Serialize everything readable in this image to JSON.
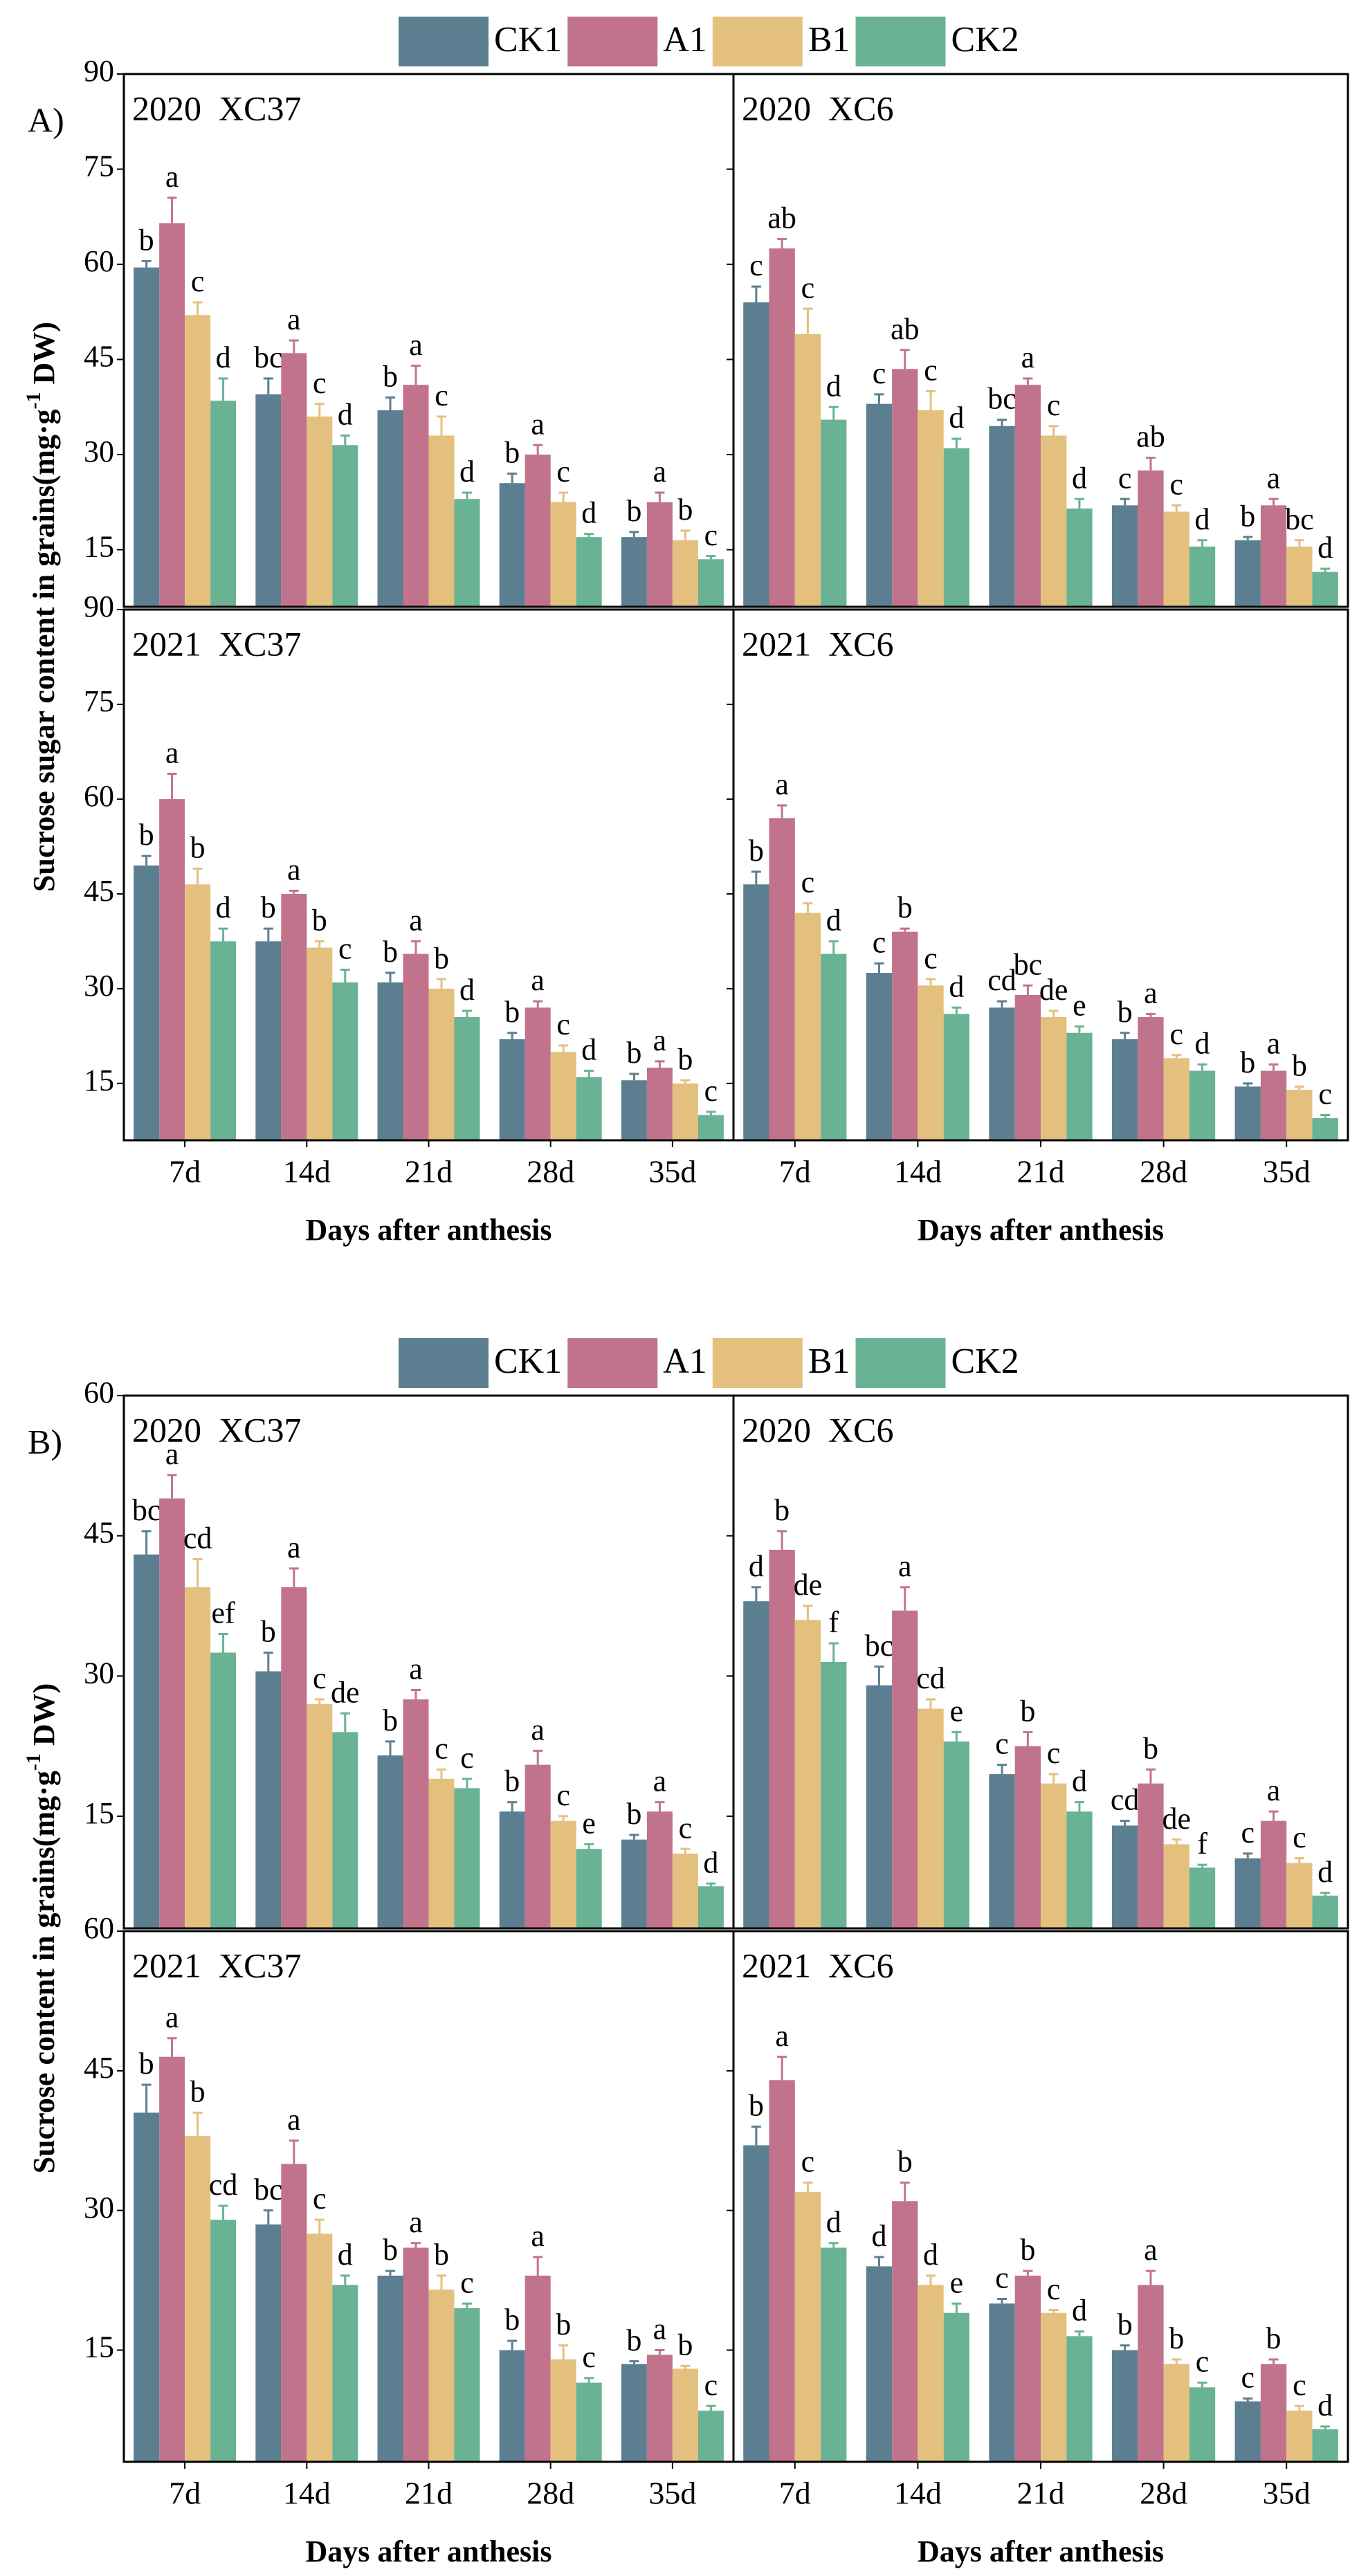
{
  "figures": [
    {
      "label": "A)",
      "ylabel": [
        "Sucrose sugar content in grains(mg·g",
        "-1",
        " DW)"
      ],
      "xlabel": "Days after anthesis"
    },
    {
      "label": "B)",
      "ylabel": [
        "Sucrose content in grains(mg·g",
        "-1",
        " DW)"
      ],
      "xlabel": "Days after anthesis"
    }
  ],
  "chart_data": [
    {
      "type": "bar",
      "title": "2020  XC37",
      "categories": [
        "7d",
        "14d",
        "21d",
        "28d",
        "35d"
      ],
      "ylim": [
        6,
        90
      ],
      "yticks": [
        15,
        30,
        45,
        60,
        75,
        90
      ],
      "series": [
        {
          "name": "CK1",
          "color": "#5b7f91",
          "values": [
            59.5,
            39.5,
            37,
            25.5,
            17
          ],
          "errors": [
            1,
            2.5,
            2,
            1.5,
            0.8
          ],
          "letters": [
            "b",
            "bc",
            "b",
            "b",
            "b"
          ]
        },
        {
          "name": "A1",
          "color": "#c2738c",
          "values": [
            66.5,
            46,
            41,
            30,
            22.5
          ],
          "errors": [
            4,
            2,
            3,
            1.5,
            1.5
          ],
          "letters": [
            "a",
            "a",
            "a",
            "a",
            "a"
          ]
        },
        {
          "name": "B1",
          "color": "#e4c07f",
          "values": [
            52,
            36,
            33,
            22.5,
            16.5
          ],
          "errors": [
            2,
            2,
            3,
            1.5,
            1.5
          ],
          "letters": [
            "c",
            "c",
            "c",
            "c",
            "b"
          ]
        },
        {
          "name": "CK2",
          "color": "#69b394",
          "values": [
            38.5,
            31.5,
            23,
            17,
            13.5
          ],
          "errors": [
            3.5,
            1.5,
            1,
            0.5,
            0.5
          ],
          "letters": [
            "d",
            "d",
            "d",
            "d",
            "c"
          ]
        }
      ]
    },
    {
      "type": "bar",
      "title": "2020  XC6",
      "categories": [
        "7d",
        "14d",
        "21d",
        "28d",
        "35d"
      ],
      "ylim": [
        6,
        90
      ],
      "yticks": [
        15,
        30,
        45,
        60,
        75,
        90
      ],
      "series": [
        {
          "name": "CK1",
          "color": "#5b7f91",
          "values": [
            54,
            38,
            34.5,
            22,
            16.5
          ],
          "errors": [
            2.5,
            1.5,
            1,
            1,
            0.5
          ],
          "letters": [
            "c",
            "c",
            "bc",
            "c",
            "b"
          ]
        },
        {
          "name": "A1",
          "color": "#c2738c",
          "values": [
            62.5,
            43.5,
            41,
            27.5,
            22
          ],
          "errors": [
            1.5,
            3,
            1,
            2,
            1
          ],
          "letters": [
            "ab",
            "ab",
            "a",
            "ab",
            "a"
          ]
        },
        {
          "name": "B1",
          "color": "#e4c07f",
          "values": [
            49,
            37,
            33,
            21,
            15.5
          ],
          "errors": [
            4,
            3,
            1.5,
            1,
            1
          ],
          "letters": [
            "c",
            "c",
            "c",
            "c",
            "bc"
          ]
        },
        {
          "name": "CK2",
          "color": "#69b394",
          "values": [
            35.5,
            31,
            21.5,
            15.5,
            11.5
          ],
          "errors": [
            2,
            1.5,
            1.5,
            1,
            0.5
          ],
          "letters": [
            "d",
            "d",
            "d",
            "d",
            "d"
          ]
        }
      ]
    },
    {
      "type": "bar",
      "title": "2021  XC37",
      "categories": [
        "7d",
        "14d",
        "21d",
        "28d",
        "35d"
      ],
      "ylim": [
        6,
        90
      ],
      "yticks": [
        15,
        30,
        45,
        60,
        75,
        90
      ],
      "series": [
        {
          "name": "CK1",
          "color": "#5b7f91",
          "values": [
            49.5,
            37.5,
            31,
            22,
            15.5
          ],
          "errors": [
            1.5,
            2,
            1.5,
            1,
            1
          ],
          "letters": [
            "b",
            "b",
            "b",
            "b",
            "b"
          ]
        },
        {
          "name": "A1",
          "color": "#c2738c",
          "values": [
            60,
            45,
            35.5,
            27,
            17.5
          ],
          "errors": [
            4,
            0.5,
            2,
            1,
            1
          ],
          "letters": [
            "a",
            "a",
            "a",
            "a",
            "a"
          ]
        },
        {
          "name": "B1",
          "color": "#e4c07f",
          "values": [
            46.5,
            36.5,
            30,
            20,
            15
          ],
          "errors": [
            2.5,
            1,
            1.5,
            1,
            0.5
          ],
          "letters": [
            "b",
            "b",
            "b",
            "c",
            "b"
          ]
        },
        {
          "name": "CK2",
          "color": "#69b394",
          "values": [
            37.5,
            31,
            25.5,
            16,
            10
          ],
          "errors": [
            2,
            2,
            1,
            1,
            0.5
          ],
          "letters": [
            "d",
            "c",
            "d",
            "d",
            "c"
          ]
        }
      ]
    },
    {
      "type": "bar",
      "title": "2021  XC6",
      "categories": [
        "7d",
        "14d",
        "21d",
        "28d",
        "35d"
      ],
      "ylim": [
        6,
        90
      ],
      "yticks": [
        15,
        30,
        45,
        60,
        75,
        90
      ],
      "series": [
        {
          "name": "CK1",
          "color": "#5b7f91",
          "values": [
            46.5,
            32.5,
            27,
            22,
            14.5
          ],
          "errors": [
            2,
            1.5,
            1,
            1,
            0.5
          ],
          "letters": [
            "b",
            "c",
            "cd",
            "b",
            "b"
          ]
        },
        {
          "name": "A1",
          "color": "#c2738c",
          "values": [
            57,
            39,
            29,
            25.5,
            17
          ],
          "errors": [
            2,
            0.5,
            1.5,
            0.5,
            1
          ],
          "letters": [
            "a",
            "b",
            "bc",
            "a",
            "a"
          ]
        },
        {
          "name": "B1",
          "color": "#e4c07f",
          "values": [
            42,
            30.5,
            25.5,
            19,
            14
          ],
          "errors": [
            1.5,
            1,
            1,
            0.5,
            0.5
          ],
          "letters": [
            "c",
            "c",
            "de",
            "c",
            "b"
          ]
        },
        {
          "name": "CK2",
          "color": "#69b394",
          "values": [
            35.5,
            26,
            23,
            17,
            9.5
          ],
          "errors": [
            2,
            1,
            1,
            1,
            0.5
          ],
          "letters": [
            "d",
            "d",
            "e",
            "d",
            "c"
          ]
        }
      ]
    },
    {
      "type": "bar",
      "title": "2020  XC37",
      "categories": [
        "7d",
        "14d",
        "21d",
        "28d",
        "35d"
      ],
      "ylim": [
        3,
        60
      ],
      "yticks": [
        15,
        30,
        45,
        60
      ],
      "series": [
        {
          "name": "CK1",
          "color": "#5b7f91",
          "values": [
            43,
            30.5,
            21.5,
            15.5,
            12.5
          ],
          "errors": [
            2.5,
            2,
            1.5,
            1,
            0.5
          ],
          "letters": [
            "bc",
            "b",
            "b",
            "b",
            "b"
          ]
        },
        {
          "name": "A1",
          "color": "#c2738c",
          "values": [
            49,
            39.5,
            27.5,
            20.5,
            15.5
          ],
          "errors": [
            2.5,
            2,
            1,
            1.5,
            1
          ],
          "letters": [
            "a",
            "a",
            "a",
            "a",
            "a"
          ]
        },
        {
          "name": "B1",
          "color": "#e4c07f",
          "values": [
            39.5,
            27,
            19,
            14.5,
            11
          ],
          "errors": [
            3,
            0.5,
            1,
            0.5,
            0.5
          ],
          "letters": [
            "cd",
            "c",
            "c",
            "c",
            "c"
          ]
        },
        {
          "name": "CK2",
          "color": "#69b394",
          "values": [
            32.5,
            24,
            18,
            11.5,
            7.5
          ],
          "errors": [
            2,
            2,
            1,
            0.5,
            0.3
          ],
          "letters": [
            "ef",
            "de",
            "c",
            "e",
            "d"
          ]
        }
      ]
    },
    {
      "type": "bar",
      "title": "2020  XC6",
      "categories": [
        "7d",
        "14d",
        "21d",
        "28d",
        "35d"
      ],
      "ylim": [
        3,
        60
      ],
      "yticks": [
        15,
        30,
        45,
        60
      ],
      "series": [
        {
          "name": "CK1",
          "color": "#5b7f91",
          "values": [
            38,
            29,
            19.5,
            14,
            10.5
          ],
          "errors": [
            1.5,
            2,
            1,
            0.5,
            0.5
          ],
          "letters": [
            "d",
            "bc",
            "c",
            "cd",
            "c"
          ]
        },
        {
          "name": "A1",
          "color": "#c2738c",
          "values": [
            43.5,
            37,
            22.5,
            18.5,
            14.5
          ],
          "errors": [
            2,
            2.5,
            1.5,
            1.5,
            1
          ],
          "letters": [
            "b",
            "a",
            "b",
            "b",
            "a"
          ]
        },
        {
          "name": "B1",
          "color": "#e4c07f",
          "values": [
            36,
            26.5,
            18.5,
            12,
            10
          ],
          "errors": [
            1.5,
            1,
            1,
            0.5,
            0.5
          ],
          "letters": [
            "de",
            "cd",
            "c",
            "de",
            "c"
          ]
        },
        {
          "name": "CK2",
          "color": "#69b394",
          "values": [
            31.5,
            23,
            15.5,
            9.5,
            6.5
          ],
          "errors": [
            2,
            1,
            1,
            0.3,
            0.3
          ],
          "letters": [
            "f",
            "e",
            "d",
            "f",
            "d"
          ]
        }
      ]
    },
    {
      "type": "bar",
      "title": "2021  XC37",
      "categories": [
        "7d",
        "14d",
        "21d",
        "28d",
        "35d"
      ],
      "ylim": [
        3,
        60
      ],
      "yticks": [
        15,
        30,
        45,
        60
      ],
      "series": [
        {
          "name": "CK1",
          "color": "#5b7f91",
          "values": [
            40.5,
            28.5,
            23,
            15,
            13.5
          ],
          "errors": [
            3,
            1.5,
            0.5,
            1,
            0.3
          ],
          "letters": [
            "b",
            "bc",
            "b",
            "b",
            "b"
          ]
        },
        {
          "name": "A1",
          "color": "#c2738c",
          "values": [
            46.5,
            35,
            26,
            23,
            14.5
          ],
          "errors": [
            2,
            2.5,
            0.5,
            2,
            0.5
          ],
          "letters": [
            "a",
            "a",
            "a",
            "a",
            "a"
          ]
        },
        {
          "name": "B1",
          "color": "#e4c07f",
          "values": [
            38,
            27.5,
            21.5,
            14,
            13
          ],
          "errors": [
            2.5,
            1.5,
            1.5,
            1.5,
            0.3
          ],
          "letters": [
            "b",
            "c",
            "b",
            "b",
            "b"
          ]
        },
        {
          "name": "CK2",
          "color": "#69b394",
          "values": [
            29,
            22,
            19.5,
            11.5,
            8.5
          ],
          "errors": [
            1.5,
            1,
            0.5,
            0.5,
            0.5
          ],
          "letters": [
            "cd",
            "d",
            "c",
            "c",
            "c"
          ]
        }
      ]
    },
    {
      "type": "bar",
      "title": "2021  XC6",
      "categories": [
        "7d",
        "14d",
        "21d",
        "28d",
        "35d"
      ],
      "ylim": [
        3,
        60
      ],
      "yticks": [
        15,
        30,
        45,
        60
      ],
      "series": [
        {
          "name": "CK1",
          "color": "#5b7f91",
          "values": [
            37,
            24,
            20,
            15,
            9.5
          ],
          "errors": [
            2,
            1,
            0.5,
            0.5,
            0.3
          ],
          "letters": [
            "b",
            "d",
            "c",
            "b",
            "c"
          ]
        },
        {
          "name": "A1",
          "color": "#c2738c",
          "values": [
            44,
            31,
            23,
            22,
            13.5
          ],
          "errors": [
            2.5,
            2,
            0.5,
            1.5,
            0.5
          ],
          "letters": [
            "a",
            "b",
            "b",
            "a",
            "b"
          ]
        },
        {
          "name": "B1",
          "color": "#e4c07f",
          "values": [
            32,
            22,
            19,
            13.5,
            8.5
          ],
          "errors": [
            1,
            1,
            0.3,
            0.5,
            0.5
          ],
          "letters": [
            "c",
            "d",
            "c",
            "b",
            "c"
          ]
        },
        {
          "name": "CK2",
          "color": "#69b394",
          "values": [
            26,
            19,
            16.5,
            11,
            6.5
          ],
          "errors": [
            0.5,
            1,
            0.5,
            0.5,
            0.3
          ],
          "letters": [
            "d",
            "e",
            "d",
            "c",
            "d"
          ]
        }
      ]
    }
  ]
}
